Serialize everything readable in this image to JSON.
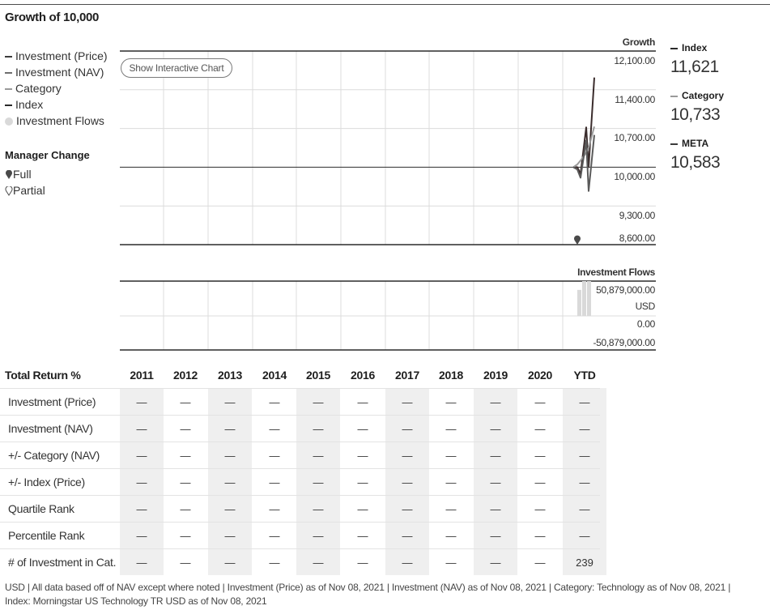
{
  "title": "Growth of 10,000",
  "legend": [
    {
      "label": "Investment (Price)",
      "color": "#3c3c3c",
      "kind": "line"
    },
    {
      "label": "Investment (NAV)",
      "color": "#6e6e6e",
      "kind": "line"
    },
    {
      "label": "Category",
      "color": "#9a9a9a",
      "kind": "line"
    },
    {
      "label": "Index",
      "color": "#2a2a2a",
      "kind": "line"
    },
    {
      "label": "Investment Flows",
      "color": "#d9d9d9",
      "kind": "dot"
    }
  ],
  "manager_change": {
    "title": "Manager Change",
    "full": "Full",
    "partial": "Partial"
  },
  "show_chart_button": "Show Interactive Chart",
  "chart_data": [
    {
      "type": "line",
      "ylabel": "Growth",
      "ylim": [
        8600,
        12100
      ],
      "ticks": [
        "12,100.00",
        "11,400.00",
        "10,700.00",
        "10,000.00",
        "9,300.00",
        "8,600.00"
      ],
      "tick_values": [
        12100,
        11400,
        10700,
        10000,
        9300,
        8600
      ],
      "baseline": 10000,
      "x_categories": [
        "2011",
        "2012",
        "2013",
        "2014",
        "2015",
        "2016",
        "2017",
        "2018",
        "2019",
        "2020",
        "YTD"
      ],
      "series": [
        {
          "name": "Index",
          "color": "#3a2c2c",
          "values": [
            10000,
            10000,
            9880,
            10720,
            10000,
            11621
          ]
        },
        {
          "name": "Category",
          "color": "#9a9a9a",
          "values": [
            10000,
            10050,
            10120,
            10260,
            10350,
            10733
          ]
        },
        {
          "name": "META",
          "color": "#5a5a5a",
          "values": [
            10000,
            9960,
            9810,
            10480,
            9570,
            10583
          ]
        }
      ],
      "manager_change_full": 1
    },
    {
      "type": "bar",
      "ylabel": "Investment Flows",
      "ticks": [
        "50,879,000.00",
        "USD",
        "0.00",
        "-50,879,000.00"
      ],
      "ylim": [
        -50879000,
        50879000
      ],
      "values": [
        38000000,
        50879000,
        50879000
      ]
    }
  ],
  "right_legend": [
    {
      "label": "Index",
      "value": "11,621",
      "color": "#2a2a2a"
    },
    {
      "label": "Category",
      "value": "10,733",
      "color": "#9a9a9a"
    },
    {
      "label": "META",
      "value": "10,583",
      "color": "#3c3c3c"
    }
  ],
  "returns_table": {
    "header": "Total Return %",
    "years": [
      "2011",
      "2012",
      "2013",
      "2014",
      "2015",
      "2016",
      "2017",
      "2018",
      "2019",
      "2020",
      "YTD"
    ],
    "rows": [
      {
        "label": "Investment (Price)",
        "cells": [
          "—",
          "—",
          "—",
          "—",
          "—",
          "—",
          "—",
          "—",
          "—",
          "—",
          "—"
        ]
      },
      {
        "label": "Investment (NAV)",
        "cells": [
          "—",
          "—",
          "—",
          "—",
          "—",
          "—",
          "—",
          "—",
          "—",
          "—",
          "—"
        ]
      },
      {
        "label": "+/- Category (NAV)",
        "cells": [
          "—",
          "—",
          "—",
          "—",
          "—",
          "—",
          "—",
          "—",
          "—",
          "—",
          "—"
        ]
      },
      {
        "label": "+/- Index (Price)",
        "cells": [
          "—",
          "—",
          "—",
          "—",
          "—",
          "—",
          "—",
          "—",
          "—",
          "—",
          "—"
        ]
      },
      {
        "label": "Quartile Rank",
        "cells": [
          "—",
          "—",
          "—",
          "—",
          "—",
          "—",
          "—",
          "—",
          "—",
          "—",
          "—"
        ]
      },
      {
        "label": "Percentile Rank",
        "cells": [
          "—",
          "—",
          "—",
          "—",
          "—",
          "—",
          "—",
          "—",
          "—",
          "—",
          "—"
        ]
      },
      {
        "label": "# of Investment in Cat.",
        "cells": [
          "—",
          "—",
          "—",
          "—",
          "—",
          "—",
          "—",
          "—",
          "—",
          "—",
          "239"
        ]
      }
    ]
  },
  "footnote": "USD | All data based off of NAV except where noted | Investment (Price) as of Nov 08, 2021 | Investment (NAV) as of Nov 08, 2021 | Category: Technology as of Nov 08, 2021 | Index: Morningstar US Technology TR USD as of Nov 08, 2021"
}
